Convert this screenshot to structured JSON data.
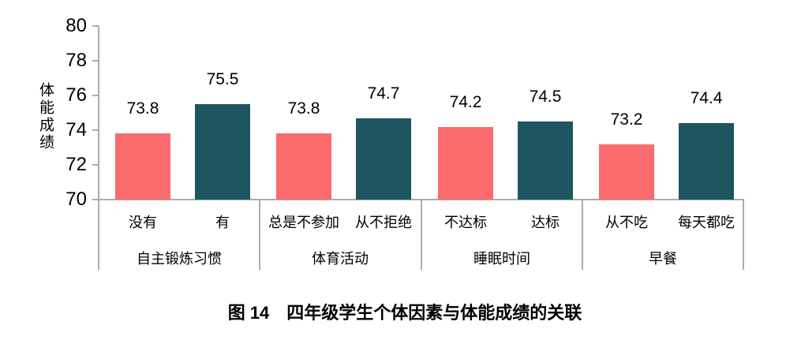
{
  "chart_data": {
    "type": "bar",
    "title": "图 14　四年级学生个体因素与体能成绩的关联",
    "ylabel": "体能成绩",
    "ylim": [
      70,
      80
    ],
    "yticks": [
      70,
      72,
      74,
      76,
      78,
      80
    ],
    "grid": false,
    "legend": "none",
    "bar_colors": [
      "#FB6B6D",
      "#1D5560"
    ],
    "axis_color": "#ACACAC",
    "text_color": "#000000",
    "groups": [
      {
        "label": "自主锻炼习惯",
        "categories": [
          "没有",
          "有"
        ],
        "values": [
          73.8,
          75.5
        ]
      },
      {
        "label": "体育活动",
        "categories": [
          "总是不参加",
          "从不拒绝"
        ],
        "values": [
          73.8,
          74.7
        ]
      },
      {
        "label": "睡眠时间",
        "categories": [
          "不达标",
          "达标"
        ],
        "values": [
          74.2,
          74.5
        ]
      },
      {
        "label": "早餐",
        "categories": [
          "从不吃",
          "每天都吃"
        ],
        "values": [
          73.2,
          74.4
        ]
      }
    ]
  }
}
